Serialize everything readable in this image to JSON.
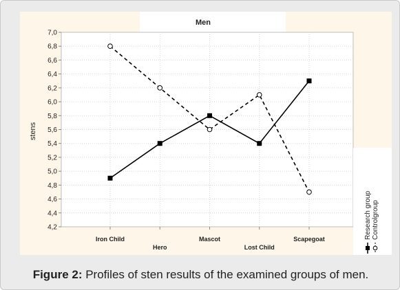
{
  "caption": {
    "label": "Figure 2:",
    "text": " Profiles of sten results of the examined groups of men."
  },
  "chart_data": {
    "type": "line",
    "title": "Men",
    "xlabel": "",
    "ylabel": "stens",
    "categories": [
      "Iron Child",
      "Hero",
      "Mascot",
      "Lost Child",
      "Scapegoat"
    ],
    "ylim": [
      4.2,
      7.0
    ],
    "yticks": [
      "7,0",
      "6,8",
      "6,6",
      "6,4",
      "6,2",
      "6,0",
      "5,8",
      "5,6",
      "5,4",
      "5,2",
      "5,0",
      "4,8",
      "4,6",
      "4,4",
      "4,2"
    ],
    "grid": true,
    "legend_position": "right, rotated vertical",
    "series": [
      {
        "name": "Research group",
        "values": [
          4.9,
          5.4,
          5.8,
          5.4,
          6.3
        ],
        "style": "solid",
        "marker": "filled-square",
        "color": "#000000"
      },
      {
        "name": "Controlgroup",
        "values": [
          6.8,
          6.2,
          5.6,
          6.1,
          4.7
        ],
        "style": "dashed",
        "marker": "open-circle",
        "color": "#000000"
      }
    ]
  }
}
